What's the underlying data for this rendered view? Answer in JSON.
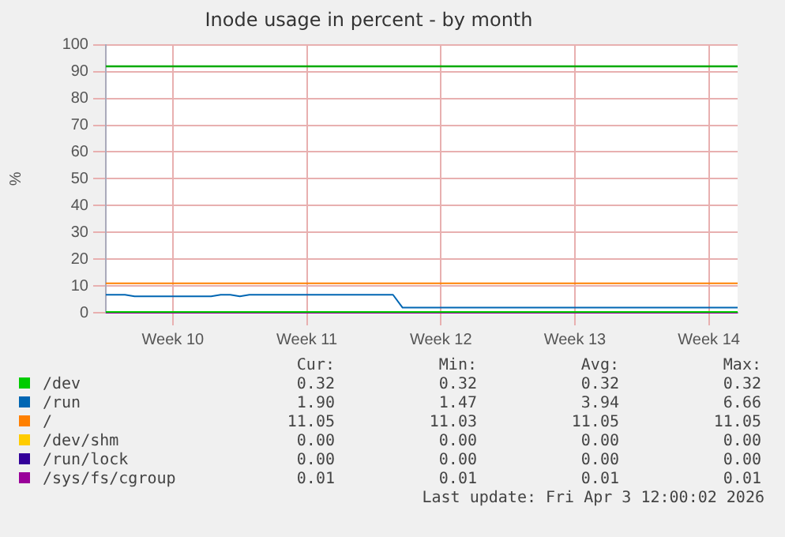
{
  "chart_data": {
    "type": "line",
    "title": "Inode usage in percent - by month",
    "ylabel": "%",
    "categories": [
      null,
      null,
      null,
      null,
      null,
      null,
      null,
      "Week 10",
      null,
      null,
      null,
      null,
      null,
      null,
      null,
      null,
      null,
      null,
      null,
      null,
      null,
      "Week 11",
      null,
      null,
      null,
      null,
      null,
      null,
      null,
      null,
      null,
      null,
      null,
      null,
      null,
      "Week 12",
      null,
      null,
      null,
      null,
      null,
      null,
      null,
      null,
      null,
      null,
      null,
      null,
      null,
      "Week 13",
      null,
      null,
      null,
      null,
      null,
      null,
      null,
      null,
      null,
      null,
      null,
      null,
      null,
      "Week 14",
      null,
      null,
      null
    ],
    "ylim": [
      0,
      100
    ],
    "yticks": [
      0,
      10,
      20,
      30,
      40,
      50,
      60,
      70,
      80,
      90,
      100
    ],
    "grid": true,
    "legend": "bottom",
    "marker": "none",
    "line_style": "solid",
    "ref_lines": [
      {
        "axis": "y",
        "value": 92,
        "color": "#00aa00"
      }
    ],
    "series": [
      {
        "name": "/dev",
        "color": "#00cc00",
        "values": [
          0.32,
          0.32,
          0.32,
          0.32,
          0.32,
          0.32,
          0.32,
          0.32,
          0.32,
          0.32,
          0.32,
          0.32,
          0.32,
          0.32,
          0.32,
          0.32,
          0.32,
          0.32,
          0.32,
          0.32,
          0.32,
          0.32,
          0.32,
          0.32,
          0.32,
          0.32,
          0.32,
          0.32,
          0.32,
          0.32,
          0.32,
          0.32,
          0.32,
          0.32,
          0.32,
          0.32,
          0.32,
          0.32,
          0.32,
          0.32,
          0.32,
          0.32,
          0.32,
          0.32,
          0.32,
          0.32,
          0.32,
          0.32,
          0.32,
          0.32,
          0.32,
          0.32,
          0.32,
          0.32,
          0.32,
          0.32,
          0.32,
          0.32,
          0.32,
          0.32,
          0.32,
          0.32,
          0.32,
          0.32,
          0.32,
          0.32,
          0.32
        ]
      },
      {
        "name": "/run",
        "color": "#0066b3",
        "values": [
          6.7,
          6.7,
          6.7,
          6.1,
          6.1,
          6.1,
          6.1,
          6.1,
          6.1,
          6.1,
          6.1,
          6.1,
          6.7,
          6.7,
          6.1,
          6.7,
          6.7,
          6.7,
          6.7,
          6.7,
          6.7,
          6.7,
          6.7,
          6.7,
          6.7,
          6.7,
          6.7,
          6.7,
          6.7,
          6.7,
          6.7,
          1.9,
          1.9,
          1.9,
          1.9,
          1.9,
          1.9,
          1.9,
          1.9,
          1.9,
          1.9,
          1.9,
          1.9,
          1.9,
          1.9,
          1.9,
          1.9,
          1.9,
          1.9,
          1.9,
          1.9,
          1.9,
          1.9,
          1.9,
          1.9,
          1.9,
          1.9,
          1.9,
          1.9,
          1.9,
          1.9,
          1.9,
          1.9,
          1.9,
          1.9,
          1.9,
          1.9
        ]
      },
      {
        "name": "/",
        "color": "#ff8000",
        "values": [
          11,
          11,
          11,
          11,
          11,
          11,
          11,
          11,
          11,
          11,
          11,
          11,
          11,
          11,
          11,
          11,
          11,
          11,
          11,
          11,
          11,
          11,
          11,
          11,
          11,
          11,
          11,
          11,
          11,
          11,
          11,
          11,
          11,
          11,
          11,
          11,
          11,
          11,
          11,
          11,
          11,
          11,
          11,
          11,
          11,
          11,
          11,
          11,
          11,
          11,
          11,
          11,
          11,
          11,
          11,
          11,
          11,
          11,
          11,
          11,
          11,
          11,
          11,
          11,
          11,
          11,
          11
        ]
      },
      {
        "name": "/dev/shm",
        "color": "#ffcc00",
        "values": [
          null,
          null,
          null,
          null,
          null,
          null,
          null,
          null,
          null,
          null,
          null,
          null,
          null,
          null,
          null,
          null,
          null,
          null,
          null,
          null,
          null,
          null,
          null,
          null,
          null,
          null,
          null,
          null,
          null,
          null,
          null,
          null,
          null,
          null,
          null,
          null,
          null,
          null,
          null,
          null,
          null,
          null,
          null,
          null,
          null,
          null,
          null,
          null,
          null,
          null,
          null,
          null,
          null,
          null,
          null,
          null,
          null,
          null,
          null,
          null,
          null,
          null,
          null,
          null,
          null,
          null,
          null
        ]
      },
      {
        "name": "/run/lock",
        "color": "#330099",
        "values": [
          null,
          null,
          null,
          null,
          null,
          null,
          null,
          null,
          null,
          null,
          null,
          null,
          null,
          null,
          null,
          null,
          null,
          null,
          null,
          null,
          null,
          null,
          null,
          null,
          null,
          null,
          null,
          null,
          null,
          null,
          null,
          null,
          null,
          null,
          null,
          null,
          null,
          null,
          null,
          null,
          null,
          null,
          null,
          null,
          null,
          null,
          null,
          null,
          null,
          null,
          null,
          null,
          null,
          null,
          null,
          null,
          null,
          null,
          null,
          null,
          null,
          null,
          null,
          null,
          null,
          null,
          null
        ]
      },
      {
        "name": "/sys/fs/cgroup",
        "color": "#990099",
        "values": [
          0,
          0,
          0,
          0,
          0,
          0,
          0,
          0,
          0,
          0,
          0,
          0,
          0,
          0,
          0,
          0,
          0,
          0,
          0,
          0,
          0,
          0,
          0,
          0,
          0,
          0,
          0,
          0,
          0,
          0,
          0,
          0,
          0,
          0,
          0,
          0,
          0,
          0,
          0,
          0,
          0,
          0,
          0,
          0,
          0,
          0,
          0,
          0,
          0,
          0,
          0,
          0,
          0,
          0,
          0,
          0,
          0,
          0,
          0,
          0,
          0,
          0,
          0,
          0,
          0,
          0,
          0
        ]
      }
    ],
    "annotations": [
      "Cur:",
      "Min:",
      "Avg:",
      "Max:",
      "0.32",
      "0.32",
      "0.32",
      "0.32",
      "1.90",
      "1.47",
      "3.94",
      "6.66",
      "11.05",
      "11.03",
      "11.05",
      "11.05",
      "0.00",
      "0.00",
      "0.00",
      "0.00",
      "0.00",
      "0.00",
      "0.00",
      "0.00",
      "0.01",
      "0.01",
      "0.01",
      "0.01",
      "Last update: Fri Apr  3 12:00:02 2026"
    ]
  }
}
